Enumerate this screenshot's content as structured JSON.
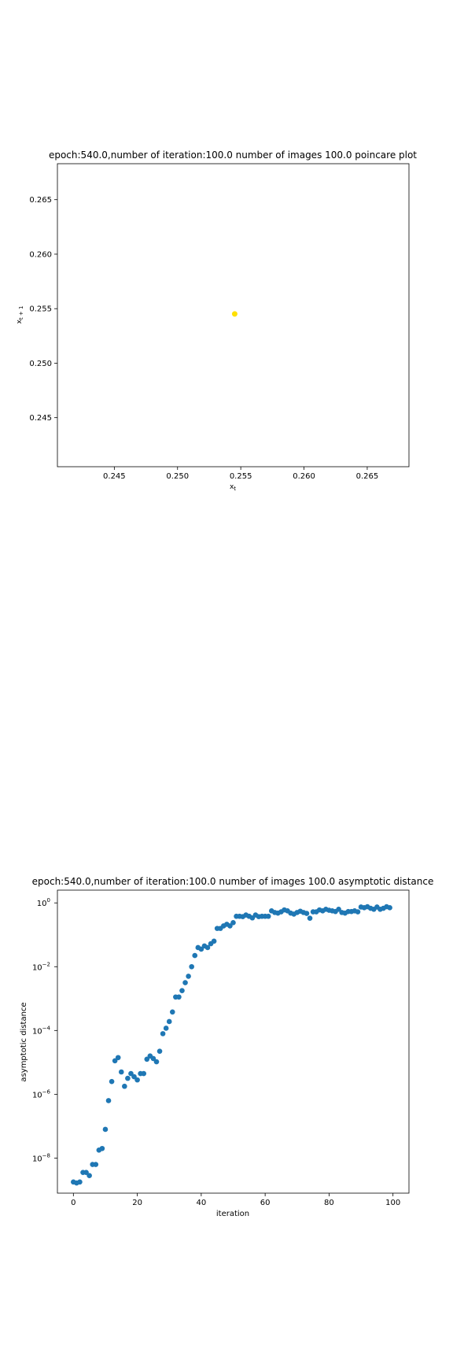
{
  "chart_data": [
    {
      "type": "scatter",
      "title": "epoch:540.0,number of iteration:100.0 number of images 100.0 poincare plot",
      "xlabel": "x_t",
      "ylabel": "x_{t+1}",
      "xlim": [
        0.2405,
        0.2683
      ],
      "ylim": [
        0.2405,
        0.2683
      ],
      "xticks": [
        {
          "value": 0.245,
          "label": "0.245"
        },
        {
          "value": 0.25,
          "label": "0.250"
        },
        {
          "value": 0.255,
          "label": "0.255"
        },
        {
          "value": 0.26,
          "label": "0.260"
        },
        {
          "value": 0.265,
          "label": "0.265"
        }
      ],
      "yticks": [
        {
          "value": 0.245,
          "label": "0.245"
        },
        {
          "value": 0.25,
          "label": "0.250"
        },
        {
          "value": 0.255,
          "label": "0.255"
        },
        {
          "value": 0.26,
          "label": "0.260"
        },
        {
          "value": 0.265,
          "label": "0.265"
        }
      ],
      "grid": false,
      "point_color": "#ffe000",
      "points": [
        {
          "x": 0.25452,
          "y": 0.25452
        }
      ]
    },
    {
      "type": "scatter",
      "title": "epoch:540.0,number of iteration:100.0  number of images 100.0 asymptotic distance",
      "xlabel": "iteration",
      "ylabel": "asymptotic distance",
      "xlim": [
        -5,
        105
      ],
      "ylog": true,
      "ylim_log10": [
        -9.1,
        0.4
      ],
      "xticks": [
        {
          "value": 0,
          "label": "0"
        },
        {
          "value": 20,
          "label": "20"
        },
        {
          "value": 40,
          "label": "40"
        },
        {
          "value": 60,
          "label": "60"
        },
        {
          "value": 80,
          "label": "80"
        },
        {
          "value": 100,
          "label": "100"
        }
      ],
      "yticks": [
        {
          "log10": -8,
          "base": "10",
          "exp": "−8"
        },
        {
          "log10": -6,
          "base": "10",
          "exp": "−6"
        },
        {
          "log10": -4,
          "base": "10",
          "exp": "−4"
        },
        {
          "log10": -2,
          "base": "10",
          "exp": "−2"
        },
        {
          "log10": 0,
          "base": "10",
          "exp": "0"
        }
      ],
      "grid": false,
      "point_color": "#1f77b4",
      "x": [
        0,
        1,
        2,
        3,
        4,
        5,
        6,
        7,
        8,
        9,
        10,
        11,
        12,
        13,
        14,
        15,
        16,
        17,
        18,
        19,
        20,
        21,
        22,
        23,
        24,
        25,
        26,
        27,
        28,
        29,
        30,
        31,
        32,
        33,
        34,
        35,
        36,
        37,
        38,
        39,
        40,
        41,
        42,
        43,
        44,
        45,
        46,
        47,
        48,
        49,
        50,
        51,
        52,
        53,
        54,
        55,
        56,
        57,
        58,
        59,
        60,
        61,
        62,
        63,
        64,
        65,
        66,
        67,
        68,
        69,
        70,
        71,
        72,
        73,
        74,
        75,
        76,
        77,
        78,
        79,
        80,
        81,
        82,
        83,
        84,
        85,
        86,
        87,
        88,
        89,
        90,
        91,
        92,
        93,
        94,
        95,
        96,
        97,
        98,
        99
      ],
      "log10_y": [
        -8.75,
        -8.78,
        -8.75,
        -8.45,
        -8.45,
        -8.55,
        -8.2,
        -8.2,
        -7.75,
        -7.7,
        -7.1,
        -6.2,
        -5.6,
        -4.95,
        -4.85,
        -5.3,
        -5.75,
        -5.5,
        -5.35,
        -5.45,
        -5.55,
        -5.35,
        -5.35,
        -4.9,
        -4.8,
        -4.88,
        -4.98,
        -4.65,
        -4.1,
        -3.93,
        -3.72,
        -3.42,
        -2.95,
        -2.95,
        -2.75,
        -2.5,
        -2.3,
        -2.0,
        -1.65,
        -1.4,
        -1.45,
        -1.35,
        -1.4,
        -1.28,
        -1.2,
        -0.8,
        -0.8,
        -0.72,
        -0.67,
        -0.72,
        -0.62,
        -0.42,
        -0.42,
        -0.43,
        -0.38,
        -0.42,
        -0.47,
        -0.38,
        -0.43,
        -0.42,
        -0.42,
        -0.42,
        -0.25,
        -0.3,
        -0.32,
        -0.28,
        -0.22,
        -0.25,
        -0.32,
        -0.35,
        -0.3,
        -0.26,
        -0.3,
        -0.33,
        -0.48,
        -0.28,
        -0.28,
        -0.22,
        -0.25,
        -0.2,
        -0.23,
        -0.25,
        -0.27,
        -0.2,
        -0.3,
        -0.32,
        -0.27,
        -0.27,
        -0.25,
        -0.28,
        -0.13,
        -0.15,
        -0.12,
        -0.17,
        -0.2,
        -0.13,
        -0.2,
        -0.17,
        -0.12,
        -0.15
      ]
    }
  ]
}
